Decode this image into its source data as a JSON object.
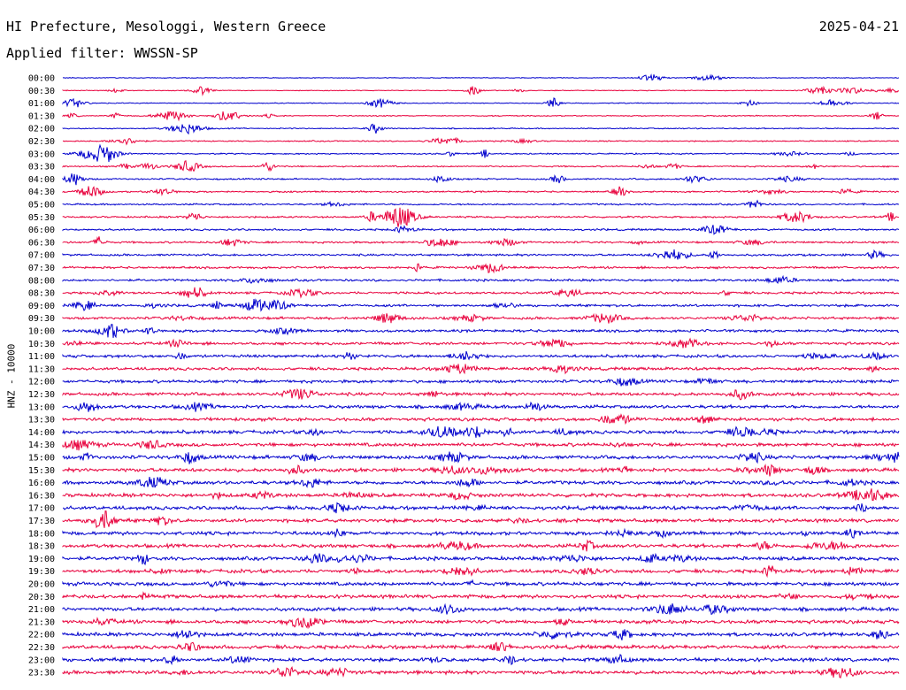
{
  "header": {
    "station": "HI Prefecture, Mesologgi, Western Greece",
    "date": "2025-04-21",
    "filter": "Applied filter: WWSSN-SP"
  },
  "chart_data": {
    "type": "line",
    "title": "HI Prefecture, Mesologgi, Western Greece",
    "ylabel": "HNZ - 10000",
    "row_labels": [
      "00:00",
      "00:30",
      "01:00",
      "01:30",
      "02:00",
      "02:30",
      "03:00",
      "03:30",
      "04:00",
      "04:30",
      "05:00",
      "05:30",
      "06:00",
      "06:30",
      "07:00",
      "07:30",
      "08:00",
      "08:30",
      "09:00",
      "09:30",
      "10:00",
      "10:30",
      "11:00",
      "11:30",
      "12:00",
      "12:30",
      "13:00",
      "13:30",
      "14:00",
      "14:30",
      "15:00",
      "15:30",
      "16:00",
      "16:30",
      "17:00",
      "17:30",
      "18:00",
      "18:30",
      "19:00",
      "19:30",
      "20:00",
      "20:30",
      "21:00",
      "21:30",
      "22:00",
      "22:30",
      "23:00",
      "23:30"
    ],
    "row_colors": [
      "#0000cc",
      "#e8003c"
    ],
    "grid": false
  }
}
